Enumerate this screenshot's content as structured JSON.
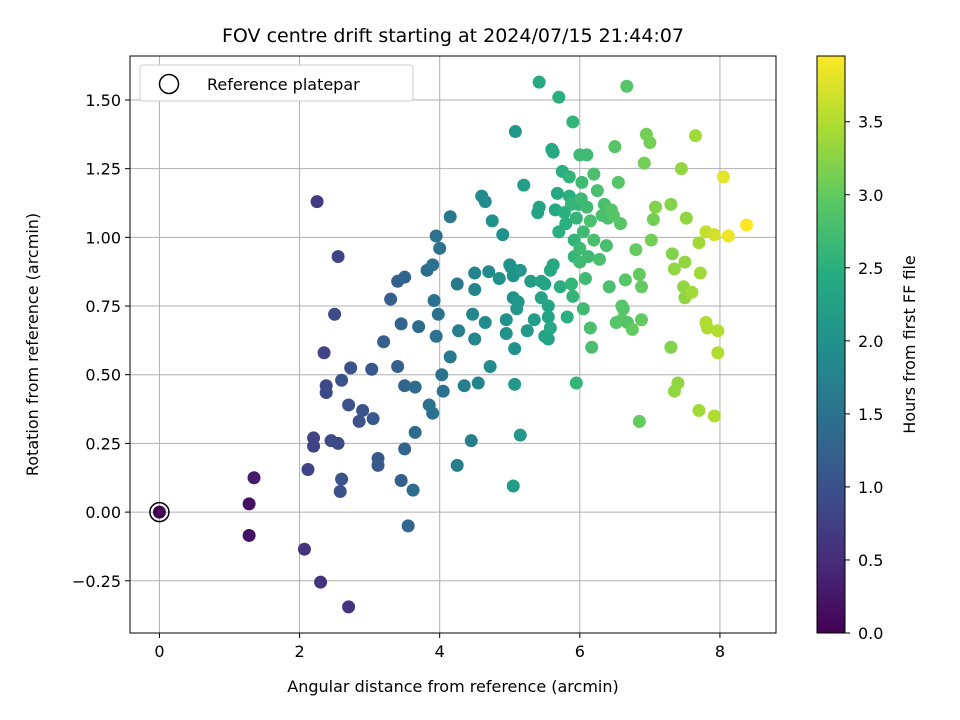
{
  "chart_data": {
    "type": "scatter",
    "title": "FOV centre drift starting at 2024/07/15 21:44:07",
    "xlabel": "Angular distance from reference (arcmin)",
    "ylabel": "Rotation from reference (arcmin)",
    "xlim": [
      -0.42,
      8.8
    ],
    "ylim": [
      -0.44,
      1.66
    ],
    "xticks": [
      0,
      2,
      4,
      6,
      8
    ],
    "xtick_labels": [
      "0",
      "2",
      "4",
      "6",
      "8"
    ],
    "yticks": [
      -0.25,
      0.0,
      0.25,
      0.5,
      0.75,
      1.0,
      1.25,
      1.5
    ],
    "ytick_labels": [
      "−0.25",
      "0.00",
      "0.25",
      "0.50",
      "0.75",
      "1.00",
      "1.25",
      "1.50"
    ],
    "grid": true,
    "legend": {
      "position": "top-left",
      "entries": [
        "Reference platepar"
      ]
    },
    "reference_point": {
      "x": 0,
      "y": 0
    },
    "colorbar": {
      "label": "Hours from first FF file",
      "colormap": "viridis",
      "range": [
        0,
        3.95
      ],
      "ticks": [
        0.0,
        0.5,
        1.0,
        1.5,
        2.0,
        2.5,
        3.0,
        3.5
      ],
      "tick_labels": [
        "0.0",
        "0.5",
        "1.0",
        "1.5",
        "2.0",
        "2.5",
        "3.0",
        "3.5"
      ]
    },
    "points": [
      [
        0.0,
        0.0,
        0.0
      ],
      [
        1.28,
        0.03,
        0.2
      ],
      [
        1.28,
        -0.085,
        0.2
      ],
      [
        1.35,
        0.125,
        0.3
      ],
      [
        2.07,
        -0.135,
        0.6
      ],
      [
        2.3,
        -0.255,
        0.6
      ],
      [
        2.7,
        -0.345,
        0.6
      ],
      [
        2.25,
        1.13,
        0.7
      ],
      [
        2.55,
        0.93,
        0.8
      ],
      [
        2.35,
        0.58,
        0.8
      ],
      [
        2.5,
        0.72,
        0.9
      ],
      [
        2.12,
        0.155,
        0.8
      ],
      [
        2.2,
        0.24,
        0.8
      ],
      [
        2.2,
        0.27,
        0.8
      ],
      [
        2.38,
        0.46,
        0.9
      ],
      [
        2.38,
        0.435,
        0.9
      ],
      [
        2.6,
        0.48,
        1.0
      ],
      [
        2.45,
        0.26,
        0.9
      ],
      [
        2.55,
        0.25,
        0.9
      ],
      [
        2.6,
        0.12,
        1.0
      ],
      [
        2.58,
        0.075,
        1.0
      ],
      [
        2.7,
        0.39,
        1.0
      ],
      [
        2.73,
        0.525,
        1.0
      ],
      [
        2.85,
        0.33,
        1.0
      ],
      [
        2.9,
        0.37,
        1.0
      ],
      [
        3.05,
        0.34,
        1.1
      ],
      [
        3.03,
        0.52,
        1.1
      ],
      [
        3.12,
        0.195,
        1.1
      ],
      [
        3.12,
        0.17,
        1.1
      ],
      [
        3.2,
        0.62,
        1.2
      ],
      [
        3.3,
        0.775,
        1.2
      ],
      [
        3.4,
        0.84,
        1.2
      ],
      [
        3.5,
        0.855,
        1.3
      ],
      [
        3.4,
        0.53,
        1.2
      ],
      [
        3.45,
        0.685,
        1.3
      ],
      [
        3.5,
        0.46,
        1.3
      ],
      [
        3.45,
        0.115,
        1.2
      ],
      [
        3.5,
        0.23,
        1.3
      ],
      [
        3.55,
        -0.05,
        1.3
      ],
      [
        3.62,
        0.08,
        1.4
      ],
      [
        3.65,
        0.29,
        1.4
      ],
      [
        3.65,
        0.455,
        1.4
      ],
      [
        3.7,
        0.675,
        1.4
      ],
      [
        3.82,
        0.88,
        1.4
      ],
      [
        3.85,
        0.39,
        1.5
      ],
      [
        3.9,
        0.36,
        1.5
      ],
      [
        3.9,
        0.9,
        1.5
      ],
      [
        3.92,
        0.77,
        1.5
      ],
      [
        3.95,
        1.005,
        1.5
      ],
      [
        3.95,
        0.64,
        1.5
      ],
      [
        3.98,
        0.72,
        1.5
      ],
      [
        4.0,
        0.96,
        1.5
      ],
      [
        4.03,
        0.5,
        1.5
      ],
      [
        4.05,
        0.44,
        1.5
      ],
      [
        4.15,
        0.565,
        1.6
      ],
      [
        4.15,
        1.075,
        1.6
      ],
      [
        4.25,
        0.83,
        1.6
      ],
      [
        4.25,
        0.17,
        1.7
      ],
      [
        4.27,
        0.66,
        1.7
      ],
      [
        4.35,
        0.46,
        1.7
      ],
      [
        4.45,
        0.26,
        1.7
      ],
      [
        4.47,
        0.72,
        1.8
      ],
      [
        4.5,
        0.63,
        1.8
      ],
      [
        4.5,
        0.81,
        1.8
      ],
      [
        4.5,
        0.87,
        1.8
      ],
      [
        4.55,
        0.47,
        1.8
      ],
      [
        4.6,
        1.15,
        1.9
      ],
      [
        4.65,
        1.13,
        1.9
      ],
      [
        4.65,
        0.69,
        1.9
      ],
      [
        4.7,
        0.875,
        1.9
      ],
      [
        4.72,
        0.53,
        1.9
      ],
      [
        4.75,
        1.06,
        2.0
      ],
      [
        4.85,
        0.85,
        2.0
      ],
      [
        4.9,
        1.01,
        2.0
      ],
      [
        4.95,
        0.65,
        2.0
      ],
      [
        4.95,
        0.7,
        2.0
      ],
      [
        5.0,
        0.9,
        2.0
      ],
      [
        5.02,
        0.89,
        2.0
      ],
      [
        5.05,
        0.86,
        2.0
      ],
      [
        5.05,
        0.78,
        2.0
      ],
      [
        5.07,
        0.595,
        2.0
      ],
      [
        5.07,
        0.465,
        2.1
      ],
      [
        5.08,
        1.385,
        2.1
      ],
      [
        5.1,
        0.74,
        2.1
      ],
      [
        5.12,
        0.765,
        2.1
      ],
      [
        5.15,
        0.88,
        2.1
      ],
      [
        5.15,
        0.28,
        2.1
      ],
      [
        5.2,
        1.19,
        2.2
      ],
      [
        5.25,
        0.66,
        2.1
      ],
      [
        5.05,
        0.095,
        2.2
      ],
      [
        5.3,
        0.84,
        2.2
      ],
      [
        5.35,
        0.7,
        2.2
      ],
      [
        5.4,
        1.09,
        2.3
      ],
      [
        5.42,
        1.11,
        2.3
      ],
      [
        5.45,
        0.84,
        2.3
      ],
      [
        5.45,
        0.78,
        2.3
      ],
      [
        5.42,
        1.565,
        2.4
      ],
      [
        5.5,
        0.83,
        2.3
      ],
      [
        5.5,
        0.64,
        2.3
      ],
      [
        5.55,
        0.63,
        2.3
      ],
      [
        5.55,
        0.71,
        2.3
      ],
      [
        5.55,
        0.75,
        2.3
      ],
      [
        5.6,
        1.32,
        2.4
      ],
      [
        5.62,
        1.31,
        2.4
      ],
      [
        5.58,
        0.67,
        2.4
      ],
      [
        5.58,
        0.88,
        2.4
      ],
      [
        5.62,
        0.9,
        2.4
      ],
      [
        5.65,
        1.1,
        2.4
      ],
      [
        5.68,
        1.16,
        2.4
      ],
      [
        5.7,
        1.51,
        2.5
      ],
      [
        5.7,
        1.02,
        2.5
      ],
      [
        5.72,
        0.82,
        2.5
      ],
      [
        5.75,
        1.24,
        2.5
      ],
      [
        5.78,
        1.09,
        2.5
      ],
      [
        5.8,
        1.05,
        2.5
      ],
      [
        5.82,
        0.71,
        2.5
      ],
      [
        5.85,
        1.15,
        2.5
      ],
      [
        5.85,
        1.22,
        2.6
      ],
      [
        5.88,
        1.12,
        2.6
      ],
      [
        5.88,
        0.83,
        2.6
      ],
      [
        5.9,
        0.785,
        2.6
      ],
      [
        5.9,
        1.42,
        2.6
      ],
      [
        5.92,
        0.93,
        2.6
      ],
      [
        5.92,
        0.99,
        2.6
      ],
      [
        5.95,
        0.47,
        2.6
      ],
      [
        5.95,
        1.07,
        2.6
      ],
      [
        5.98,
        1.12,
        2.6
      ],
      [
        6.0,
        1.3,
        2.7
      ],
      [
        6.0,
        0.91,
        2.7
      ],
      [
        6.0,
        0.96,
        2.7
      ],
      [
        6.02,
        1.14,
        2.7
      ],
      [
        6.03,
        1.2,
        2.7
      ],
      [
        6.05,
        1.02,
        2.7
      ],
      [
        6.05,
        0.74,
        2.7
      ],
      [
        6.08,
        0.85,
        2.7
      ],
      [
        6.1,
        1.3,
        2.7
      ],
      [
        6.1,
        1.11,
        2.7
      ],
      [
        6.12,
        0.93,
        2.7
      ],
      [
        6.15,
        0.67,
        2.8
      ],
      [
        6.15,
        1.06,
        2.8
      ],
      [
        6.17,
        0.6,
        2.8
      ],
      [
        6.2,
        1.23,
        2.8
      ],
      [
        6.2,
        0.99,
        2.8
      ],
      [
        6.25,
        1.17,
        2.8
      ],
      [
        6.28,
        0.92,
        2.8
      ],
      [
        6.32,
        1.08,
        2.8
      ],
      [
        6.35,
        1.12,
        2.8
      ],
      [
        6.38,
        0.97,
        2.8
      ],
      [
        6.4,
        1.07,
        2.8
      ],
      [
        6.42,
        0.82,
        2.8
      ],
      [
        6.45,
        1.1,
        2.9
      ],
      [
        6.48,
        1.08,
        2.9
      ],
      [
        6.5,
        1.33,
        2.9
      ],
      [
        6.52,
        0.69,
        2.9
      ],
      [
        6.55,
        1.2,
        2.9
      ],
      [
        6.58,
        1.05,
        2.9
      ],
      [
        6.6,
        0.75,
        2.9
      ],
      [
        6.62,
        0.74,
        2.9
      ],
      [
        6.6,
        0.7,
        2.9
      ],
      [
        6.67,
        1.55,
        2.9
      ],
      [
        6.65,
        0.845,
        2.9
      ],
      [
        6.68,
        0.69,
        2.9
      ],
      [
        6.75,
        0.665,
        3.0
      ],
      [
        6.8,
        0.955,
        3.0
      ],
      [
        6.85,
        0.33,
        3.0
      ],
      [
        6.85,
        0.865,
        3.0
      ],
      [
        6.88,
        0.82,
        3.0
      ],
      [
        6.88,
        0.7,
        3.0
      ],
      [
        6.92,
        1.27,
        3.1
      ],
      [
        6.95,
        1.375,
        3.1
      ],
      [
        7.0,
        1.345,
        3.1
      ],
      [
        7.02,
        0.99,
        3.1
      ],
      [
        7.05,
        1.065,
        3.1
      ],
      [
        7.08,
        1.11,
        3.2
      ],
      [
        7.3,
        0.6,
        3.2
      ],
      [
        7.3,
        1.12,
        3.2
      ],
      [
        7.32,
        0.94,
        3.2
      ],
      [
        7.35,
        0.885,
        3.3
      ],
      [
        7.35,
        0.44,
        3.3
      ],
      [
        7.4,
        0.47,
        3.3
      ],
      [
        7.45,
        1.25,
        3.3
      ],
      [
        7.48,
        0.82,
        3.3
      ],
      [
        7.5,
        0.78,
        3.3
      ],
      [
        7.5,
        0.91,
        3.3
      ],
      [
        7.52,
        1.07,
        3.3
      ],
      [
        7.6,
        0.8,
        3.4
      ],
      [
        7.65,
        1.37,
        3.4
      ],
      [
        7.7,
        0.37,
        3.4
      ],
      [
        7.7,
        0.98,
        3.4
      ],
      [
        7.72,
        0.87,
        3.4
      ],
      [
        7.8,
        0.69,
        3.5
      ],
      [
        7.82,
        0.67,
        3.5
      ],
      [
        7.8,
        1.02,
        3.6
      ],
      [
        7.92,
        1.01,
        3.7
      ],
      [
        7.92,
        0.35,
        3.5
      ],
      [
        7.97,
        0.66,
        3.5
      ],
      [
        7.97,
        0.58,
        3.5
      ],
      [
        8.05,
        1.22,
        3.8
      ],
      [
        8.12,
        1.005,
        3.85
      ],
      [
        8.38,
        1.045,
        3.95
      ]
    ]
  }
}
